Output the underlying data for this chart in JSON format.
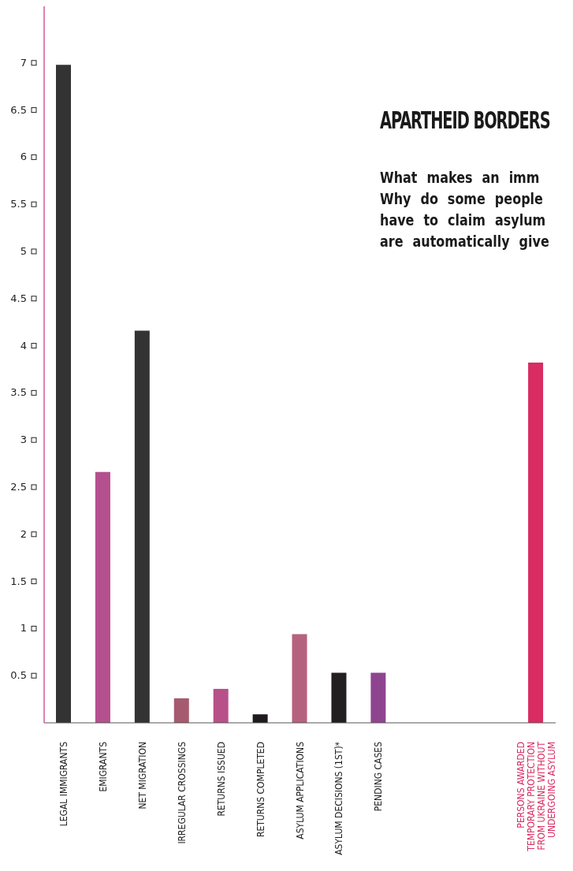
{
  "chart_data": {
    "type": "bar",
    "title": "APARTHEID BORDERS",
    "subtitle": "What makes an imm\nWhy do some people\nhave to claim asylum\nare automatically give",
    "categories": [
      "LEGAL IMMIGRANTS",
      "EMIGRANTS",
      "NET MIGRATION",
      "IRREGULAR CROSSINGS",
      "RETURNS ISSUED",
      "RETURNS COMPLETED",
      "ASYLUM APPLICATIONS",
      "ASYLUM DECISIONS (1ST)*",
      "PENDING CASES",
      null,
      null,
      null,
      "PERSONS AWARDED TEMPORARY PROTECTION FROM UKRAINE WITHOUT UNDERGOING ASYLUM"
    ],
    "values": [
      6.98,
      2.66,
      4.16,
      0.26,
      0.36,
      0.09,
      0.94,
      0.53,
      0.53,
      null,
      null,
      null,
      3.82
    ],
    "colors": [
      "#333333",
      "#b5508e",
      "#333333",
      "#a65a70",
      "#b8508a",
      "#1e1a1e",
      "#b5627f",
      "#231f20",
      "#8f4490",
      null,
      null,
      null,
      "#d82c63"
    ],
    "ylim": [
      0,
      7.6
    ],
    "yticks": [
      0.5,
      1,
      1.5,
      2,
      2.5,
      3,
      3.5,
      4,
      4.5,
      5,
      5.5,
      6,
      6.5,
      7
    ],
    "grid": false,
    "legend": false
  }
}
